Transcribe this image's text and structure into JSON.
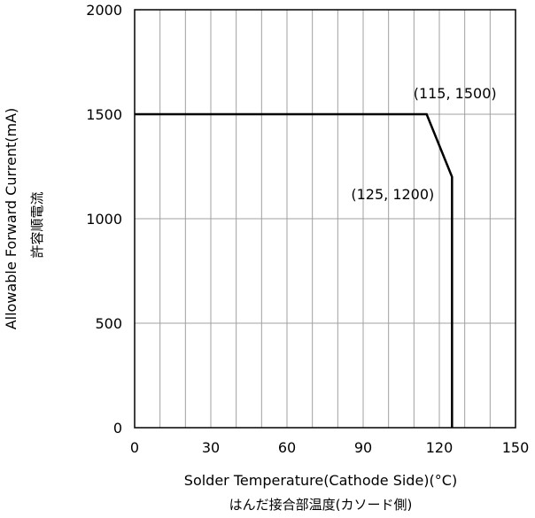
{
  "chart_data": {
    "type": "line",
    "xlabel": "Solder Temperature(Cathode Side)(°C)",
    "xlabel_sub": "はんだ接合部温度(カソード側)",
    "ylabel": "Allowable Forward Current(mA)",
    "ylabel_sub": "許容順電流",
    "xlim": [
      0,
      150
    ],
    "ylim": [
      0,
      2000
    ],
    "x_ticks": [
      0,
      30,
      60,
      90,
      120,
      150
    ],
    "x_tick_labels": [
      "0",
      "30",
      "60",
      "90",
      "120",
      "150"
    ],
    "y_ticks": [
      0,
      500,
      1000,
      1500,
      2000
    ],
    "y_tick_labels": [
      "0",
      "500",
      "1000",
      "1500",
      "2000"
    ],
    "x_minor_step": 10,
    "grid": true,
    "series": [
      {
        "color": "#000000",
        "points": [
          [
            0,
            1500
          ],
          [
            115,
            1500
          ],
          [
            125,
            1200
          ],
          [
            125,
            0
          ]
        ]
      }
    ],
    "annotations": [
      {
        "text": "(115, 1500)",
        "x": 115,
        "y": 1500
      },
      {
        "text": "(125, 1200)",
        "x": 125,
        "y": 1200
      }
    ]
  }
}
